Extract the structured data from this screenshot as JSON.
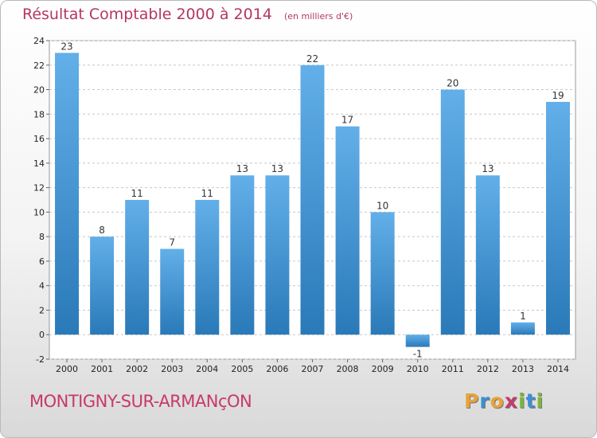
{
  "title": "Résultat Comptable 2000 à 2014",
  "subtitle": "(en milliers d'€)",
  "city": "MONTIGNY-SUR-ARMANçON",
  "brand": {
    "letters": [
      "P",
      "r",
      "o",
      "x",
      "i",
      "t",
      "i"
    ],
    "colors": [
      "#e8a33a",
      "#3a8fd6",
      "#e8a33a",
      "#c33b6b",
      "#7ab83a",
      "#3a8fd6",
      "#7ab83a"
    ]
  },
  "colors": {
    "bar_light": "#62afe9",
    "bar_dark": "#2a79b8",
    "grid": "#c8c8c8",
    "title": "#b5365f"
  },
  "chart_data": {
    "type": "bar",
    "title": "Résultat Comptable 2000 à 2014",
    "subtitle": "(en milliers d'€)",
    "categories": [
      "2000",
      "2001",
      "2002",
      "2003",
      "2004",
      "2005",
      "2006",
      "2007",
      "2008",
      "2009",
      "2010",
      "2011",
      "2012",
      "2013",
      "2014"
    ],
    "values": [
      23,
      8,
      11,
      7,
      11,
      13,
      13,
      22,
      17,
      10,
      -1,
      20,
      13,
      1,
      19
    ],
    "value_labels": [
      "23",
      "8",
      "11",
      "7",
      "11",
      "13",
      "13",
      "22",
      "17",
      "10",
      "-1",
      "20",
      "13",
      "1",
      "19"
    ],
    "ylim": [
      -2,
      24
    ],
    "yticks": [
      -2,
      0,
      2,
      4,
      6,
      8,
      10,
      12,
      14,
      16,
      18,
      20,
      22,
      24
    ],
    "grid": true
  }
}
